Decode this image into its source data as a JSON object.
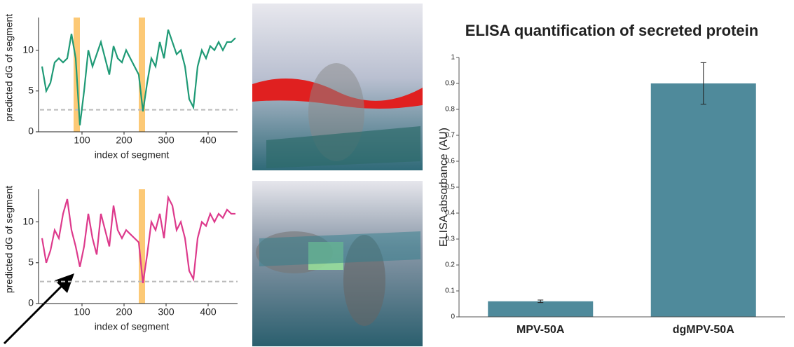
{
  "chart_data": [
    {
      "type": "line",
      "x_label": "index of segment",
      "y_label": "predicted dG of segment",
      "color": "#1f9a76",
      "x": [
        5,
        15,
        25,
        35,
        45,
        55,
        65,
        75,
        85,
        95,
        105,
        115,
        125,
        135,
        145,
        155,
        165,
        175,
        185,
        195,
        205,
        215,
        225,
        235,
        245,
        255,
        265,
        275,
        285,
        295,
        305,
        315,
        325,
        335,
        345,
        355,
        365,
        375,
        385,
        395,
        405,
        415,
        425,
        435,
        445,
        455,
        465
      ],
      "values": [
        8,
        5,
        6,
        8.5,
        9,
        8.5,
        9,
        12,
        9,
        0.8,
        5,
        10,
        8,
        9.5,
        11,
        9,
        7,
        10.5,
        9,
        8.5,
        10,
        9,
        8,
        7,
        2.5,
        6,
        9,
        8,
        11,
        9,
        12.5,
        11,
        9.5,
        10,
        8,
        4,
        3,
        8,
        10,
        9,
        10.5,
        10,
        11,
        10,
        11,
        11,
        11.5
      ],
      "xlim": [
        0,
        470
      ],
      "ylim": [
        0,
        14
      ],
      "xticks": [
        100,
        200,
        300,
        400
      ],
      "yticks": [
        0,
        5,
        10
      ],
      "threshold": 2.7,
      "highlights": [
        [
          80,
          95
        ],
        [
          235,
          250
        ]
      ],
      "highlight_color": "#fbbf5e"
    },
    {
      "type": "line",
      "x_label": "index of segment",
      "y_label": "predicted dG of segment",
      "color": "#dd3a8c",
      "x": [
        5,
        15,
        25,
        35,
        45,
        55,
        65,
        75,
        85,
        95,
        105,
        115,
        125,
        135,
        145,
        155,
        165,
        175,
        185,
        195,
        205,
        215,
        225,
        235,
        245,
        255,
        265,
        275,
        285,
        295,
        305,
        315,
        325,
        335,
        345,
        355,
        365,
        375,
        385,
        395,
        405,
        415,
        425,
        435,
        445,
        455,
        465
      ],
      "values": [
        8,
        5,
        6.5,
        9,
        8,
        11,
        12.8,
        9,
        7,
        4.5,
        7,
        11,
        8,
        6,
        11,
        9,
        7,
        12,
        9,
        8,
        9,
        8.5,
        8,
        7.5,
        2.5,
        6,
        10,
        9,
        11,
        8,
        13,
        12,
        9,
        10,
        8,
        4,
        3,
        8,
        10,
        9.5,
        11,
        10,
        11,
        10.5,
        11.5,
        11,
        11
      ],
      "xlim": [
        0,
        470
      ],
      "ylim": [
        0,
        14
      ],
      "xticks": [
        100,
        200,
        300,
        400
      ],
      "yticks": [
        0,
        5,
        10
      ],
      "threshold": 2.7,
      "highlights": [
        [
          235,
          250
        ]
      ],
      "highlight_color": "#fbbf5e"
    },
    {
      "type": "bar",
      "title": "ELISA quantification of secreted protein",
      "y_label": "ELISA absorbance (AU)",
      "color": "#4f8a9b",
      "categories": [
        "MPV-50A",
        "dgMPV-50A"
      ],
      "values": [
        0.06,
        0.9
      ],
      "errors": [
        0.005,
        0.08
      ],
      "ylim": [
        0,
        1
      ],
      "yticks": [
        0,
        0.1,
        0.2,
        0.3,
        0.4,
        0.5,
        0.6,
        0.7,
        0.8,
        0.9,
        1
      ]
    }
  ]
}
